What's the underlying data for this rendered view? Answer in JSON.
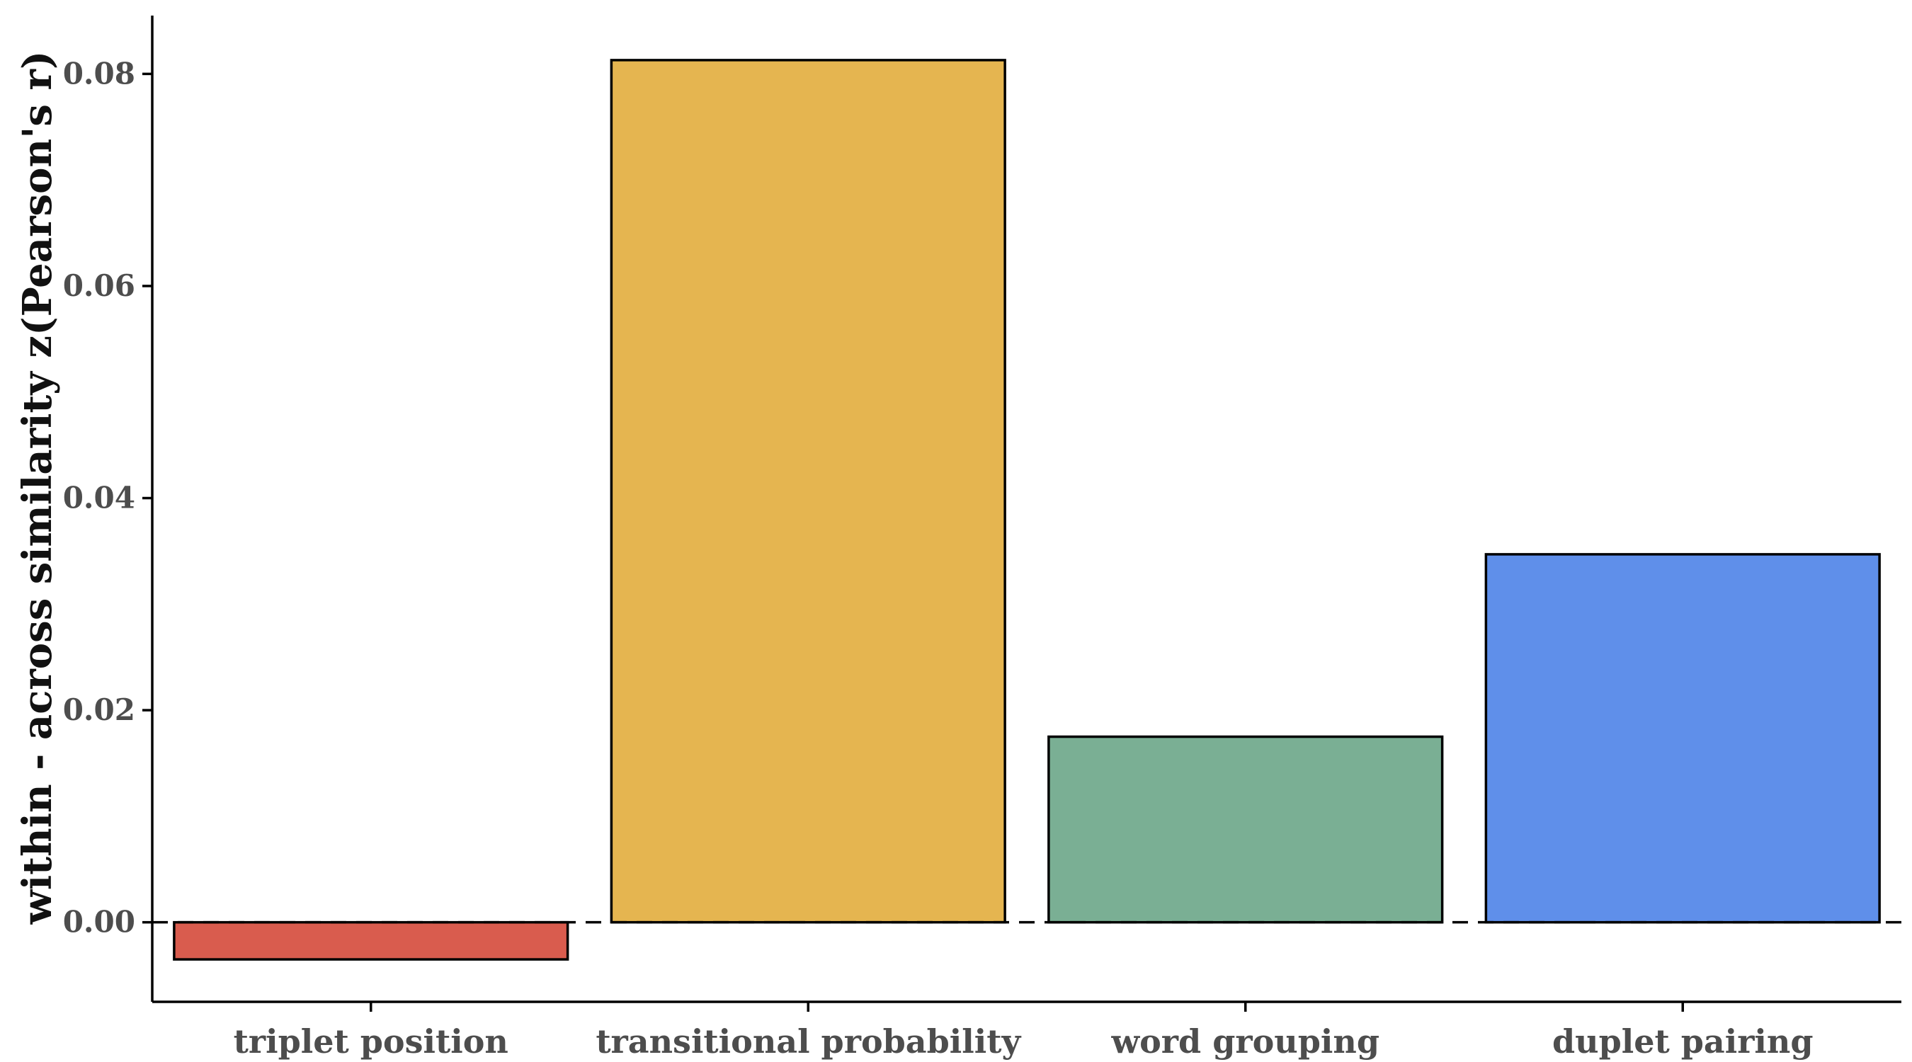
{
  "chart_data": {
    "type": "bar",
    "title": "",
    "xlabel": "",
    "ylabel": "within - across similarity z(Pearson's r)",
    "categories": [
      "triplet position",
      "transitional probability",
      "word grouping",
      "duplet pairing"
    ],
    "values": [
      -0.0035,
      0.0813,
      0.0175,
      0.0347
    ],
    "colors": [
      "#d95c4e",
      "#e5b550",
      "#7aaf94",
      "#5f8fea"
    ],
    "ylim": [
      -0.0075,
      0.0855
    ],
    "yticks": [
      0.0,
      0.02,
      0.04,
      0.06,
      0.08
    ],
    "ytick_labels": [
      "0.00",
      "0.02",
      "0.04",
      "0.06",
      "0.08"
    ],
    "reference_line": {
      "y": 0,
      "style": "dashed"
    },
    "grid": false,
    "legend": "none"
  }
}
